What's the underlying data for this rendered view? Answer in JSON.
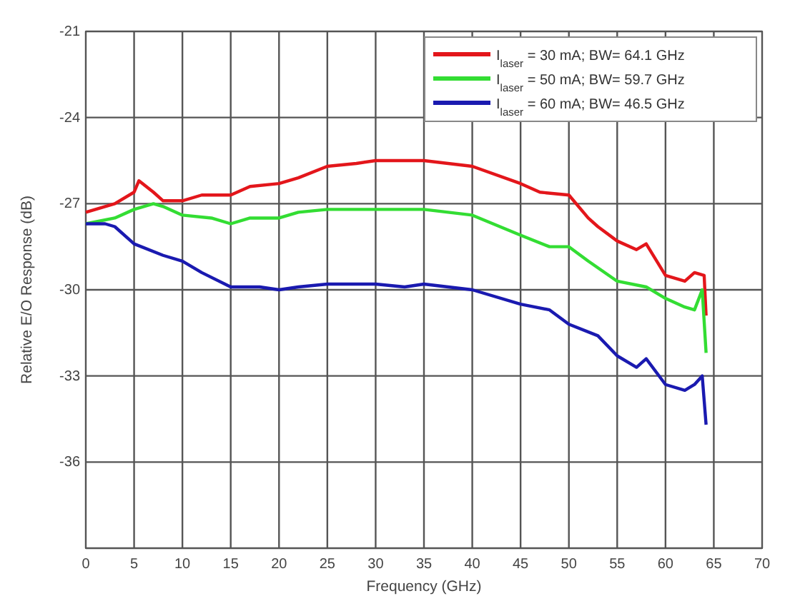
{
  "chart_data": {
    "type": "line",
    "xlabel": "Frequency (GHz)",
    "ylabel": "Relative E/O Response (dB)",
    "xlim": [
      0,
      70
    ],
    "xticks": [
      0,
      5,
      10,
      15,
      20,
      25,
      30,
      35,
      40,
      45,
      50,
      55,
      60,
      65,
      70
    ],
    "ylim": [
      -39,
      -21
    ],
    "yticks": [
      {
        "value": -39,
        "label": null
      },
      -36,
      -33,
      -30,
      -27,
      -24,
      -21
    ],
    "grid": true,
    "legend": "top right",
    "line_style": "solid",
    "series": [
      {
        "name": "I$_{laser}$ = 30 mA; BW= 64.1 GHz",
        "color": "#e3161b",
        "x": [
          0,
          3,
          5,
          5.5,
          7,
          8,
          10,
          12,
          15,
          17,
          20,
          22,
          25,
          28,
          30,
          35,
          40,
          45,
          47,
          50,
          52,
          53,
          55,
          57,
          58,
          60,
          62,
          63,
          64,
          64.2
        ],
        "values": [
          -27.3,
          -27.0,
          -26.6,
          -26.2,
          -26.6,
          -26.9,
          -26.9,
          -26.7,
          -26.7,
          -26.4,
          -26.3,
          -26.1,
          -25.7,
          -25.6,
          -25.5,
          -25.5,
          -25.7,
          -26.3,
          -26.6,
          -26.7,
          -27.5,
          -27.8,
          -28.3,
          -28.6,
          -28.4,
          -29.5,
          -29.7,
          -29.4,
          -29.5,
          -30.9
        ]
      },
      {
        "name": "I$_{laser}$ = 50 mA; BW= 59.7 GHz",
        "color": "#33dd33",
        "x": [
          0,
          3,
          5,
          7,
          8,
          10,
          13,
          15,
          17,
          20,
          22,
          25,
          30,
          35,
          40,
          45,
          48,
          50,
          52,
          55,
          58,
          60,
          62,
          63,
          63.8,
          64.2
        ],
        "values": [
          -27.7,
          -27.5,
          -27.2,
          -27.0,
          -27.1,
          -27.4,
          -27.5,
          -27.7,
          -27.5,
          -27.5,
          -27.3,
          -27.2,
          -27.2,
          -27.2,
          -27.4,
          -28.1,
          -28.5,
          -28.5,
          -29.0,
          -29.7,
          -29.9,
          -30.3,
          -30.6,
          -30.7,
          -30.0,
          -32.2
        ]
      },
      {
        "name": "I$_{laser}$ = 60 mA; BW= 46.5 GHz",
        "color": "#1a1ab0",
        "x": [
          0,
          2,
          3,
          5,
          8,
          10,
          12,
          15,
          18,
          20,
          22,
          25,
          30,
          33,
          35,
          40,
          45,
          48,
          50,
          53,
          55,
          57,
          58,
          60,
          62,
          63,
          63.8,
          64.2
        ],
        "values": [
          -27.7,
          -27.7,
          -27.8,
          -28.4,
          -28.8,
          -29.0,
          -29.4,
          -29.9,
          -29.9,
          -30.0,
          -29.9,
          -29.8,
          -29.8,
          -29.9,
          -29.8,
          -30.0,
          -30.5,
          -30.7,
          -31.2,
          -31.6,
          -32.3,
          -32.7,
          -32.4,
          -33.3,
          -33.5,
          -33.3,
          -33.0,
          -34.7
        ]
      }
    ]
  }
}
